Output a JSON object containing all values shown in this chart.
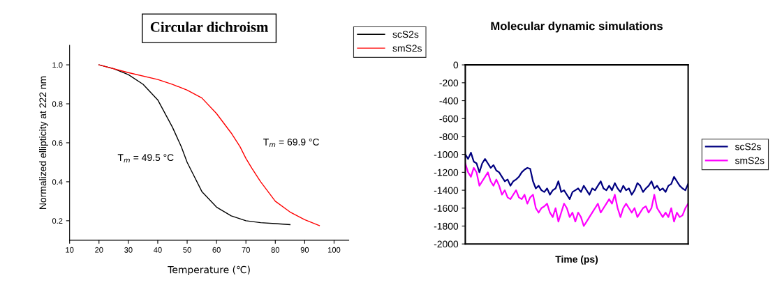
{
  "chart_data": [
    {
      "type": "line",
      "title": "Circular dichroism",
      "xlabel": "Temperature (℃)",
      "ylabel": "Normalized ellipticity at 222 nm",
      "xlim": [
        10,
        105
      ],
      "xticks": [
        10,
        20,
        30,
        40,
        50,
        60,
        70,
        80,
        90,
        100
      ],
      "ylim": [
        0.1,
        1.1
      ],
      "yticks": [
        {
          "value": 0.2,
          "label": "0.2"
        },
        {
          "value": 0.4,
          "label": "0.4"
        },
        {
          "value": 0.6,
          "label": "0.6"
        },
        {
          "value": 0.8,
          "label": "0.8"
        },
        {
          "value": 1.0,
          "label": "1.0"
        }
      ],
      "grid": false,
      "legend": "top right",
      "annotations": [
        {
          "text": "T$_{m}$ = 49.5 °C",
          "x": 49.5,
          "y": 0.52
        },
        {
          "text": "T$_{m}$ = 69.9 °C",
          "x": 69.9,
          "y": 0.54
        }
      ],
      "series": [
        {
          "name": "scS2s",
          "color": "#000000",
          "x": [
            20,
            25,
            30,
            35,
            40,
            45,
            48,
            50,
            52,
            55,
            60,
            65,
            70,
            75,
            80,
            85
          ],
          "values": [
            1.0,
            0.98,
            0.95,
            0.9,
            0.82,
            0.68,
            0.58,
            0.5,
            0.44,
            0.35,
            0.27,
            0.225,
            0.2,
            0.19,
            0.185,
            0.18
          ]
        },
        {
          "name": "smS2s",
          "color": "#ff0000",
          "x": [
            20,
            30,
            40,
            45,
            50,
            55,
            60,
            65,
            68,
            70,
            72,
            75,
            80,
            85,
            90,
            95
          ],
          "values": [
            1.0,
            0.96,
            0.925,
            0.9,
            0.87,
            0.83,
            0.75,
            0.65,
            0.58,
            0.52,
            0.47,
            0.4,
            0.3,
            0.245,
            0.205,
            0.175
          ]
        }
      ]
    },
    {
      "type": "line",
      "title": "Molecular dynamic simulations",
      "xlabel": "Time (ps)",
      "categories": [
        null,
        null,
        null,
        null,
        null,
        null,
        null,
        null,
        null,
        null,
        null,
        null,
        null,
        null,
        null,
        null,
        null,
        null,
        null,
        null,
        null,
        null,
        null,
        null,
        null,
        null,
        null,
        null,
        null,
        null,
        null,
        null,
        null,
        null,
        null,
        null,
        null,
        null,
        null,
        null,
        null,
        null,
        null,
        null,
        null,
        null,
        null,
        null,
        null,
        null,
        null,
        null,
        null,
        null,
        null,
        null,
        null,
        null,
        null,
        null,
        null,
        null,
        null,
        null,
        null,
        null,
        null,
        null,
        null,
        null,
        null,
        null,
        null,
        null,
        null,
        null,
        null,
        null,
        null,
        null
      ],
      "ylim": [
        -2000,
        0
      ],
      "yticks": [
        -2000,
        -1800,
        -1600,
        -1400,
        -1200,
        -1000,
        -800,
        -600,
        -400,
        -200,
        0
      ],
      "tick_labels": "y",
      "grid": false,
      "legend": "right",
      "series": [
        {
          "name": "scS2s",
          "color": "#000080",
          "values": [
            -1000,
            -1050,
            -980,
            -1080,
            -1100,
            -1200,
            -1100,
            -1050,
            -1100,
            -1150,
            -1120,
            -1180,
            -1200,
            -1250,
            -1300,
            -1280,
            -1350,
            -1300,
            -1280,
            -1250,
            -1200,
            -1170,
            -1150,
            -1160,
            -1300,
            -1380,
            -1350,
            -1400,
            -1420,
            -1380,
            -1450,
            -1400,
            -1380,
            -1300,
            -1420,
            -1400,
            -1450,
            -1500,
            -1420,
            -1400,
            -1380,
            -1420,
            -1350,
            -1400,
            -1450,
            -1380,
            -1400,
            -1350,
            -1300,
            -1380,
            -1400,
            -1350,
            -1400,
            -1320,
            -1380,
            -1420,
            -1350,
            -1400,
            -1380,
            -1450,
            -1400,
            -1320,
            -1350,
            -1420,
            -1380,
            -1350,
            -1300,
            -1380,
            -1350,
            -1400,
            -1380,
            -1420,
            -1350,
            -1330,
            -1250,
            -1300,
            -1350,
            -1380,
            -1400,
            -1330
          ]
        },
        {
          "name": "smS2s",
          "color": "#ff00ff",
          "values": [
            -1100,
            -1200,
            -1250,
            -1150,
            -1200,
            -1350,
            -1300,
            -1250,
            -1200,
            -1300,
            -1350,
            -1280,
            -1350,
            -1450,
            -1400,
            -1480,
            -1500,
            -1450,
            -1400,
            -1480,
            -1500,
            -1450,
            -1550,
            -1480,
            -1450,
            -1600,
            -1650,
            -1600,
            -1580,
            -1550,
            -1650,
            -1700,
            -1600,
            -1750,
            -1650,
            -1550,
            -1600,
            -1700,
            -1650,
            -1750,
            -1650,
            -1700,
            -1800,
            -1750,
            -1700,
            -1650,
            -1600,
            -1550,
            -1650,
            -1600,
            -1550,
            -1500,
            -1550,
            -1450,
            -1600,
            -1700,
            -1600,
            -1550,
            -1600,
            -1650,
            -1600,
            -1700,
            -1650,
            -1600,
            -1580,
            -1650,
            -1600,
            -1450,
            -1600,
            -1650,
            -1700,
            -1650,
            -1700,
            -1600,
            -1750,
            -1650,
            -1700,
            -1680,
            -1600,
            -1550
          ]
        }
      ]
    }
  ]
}
